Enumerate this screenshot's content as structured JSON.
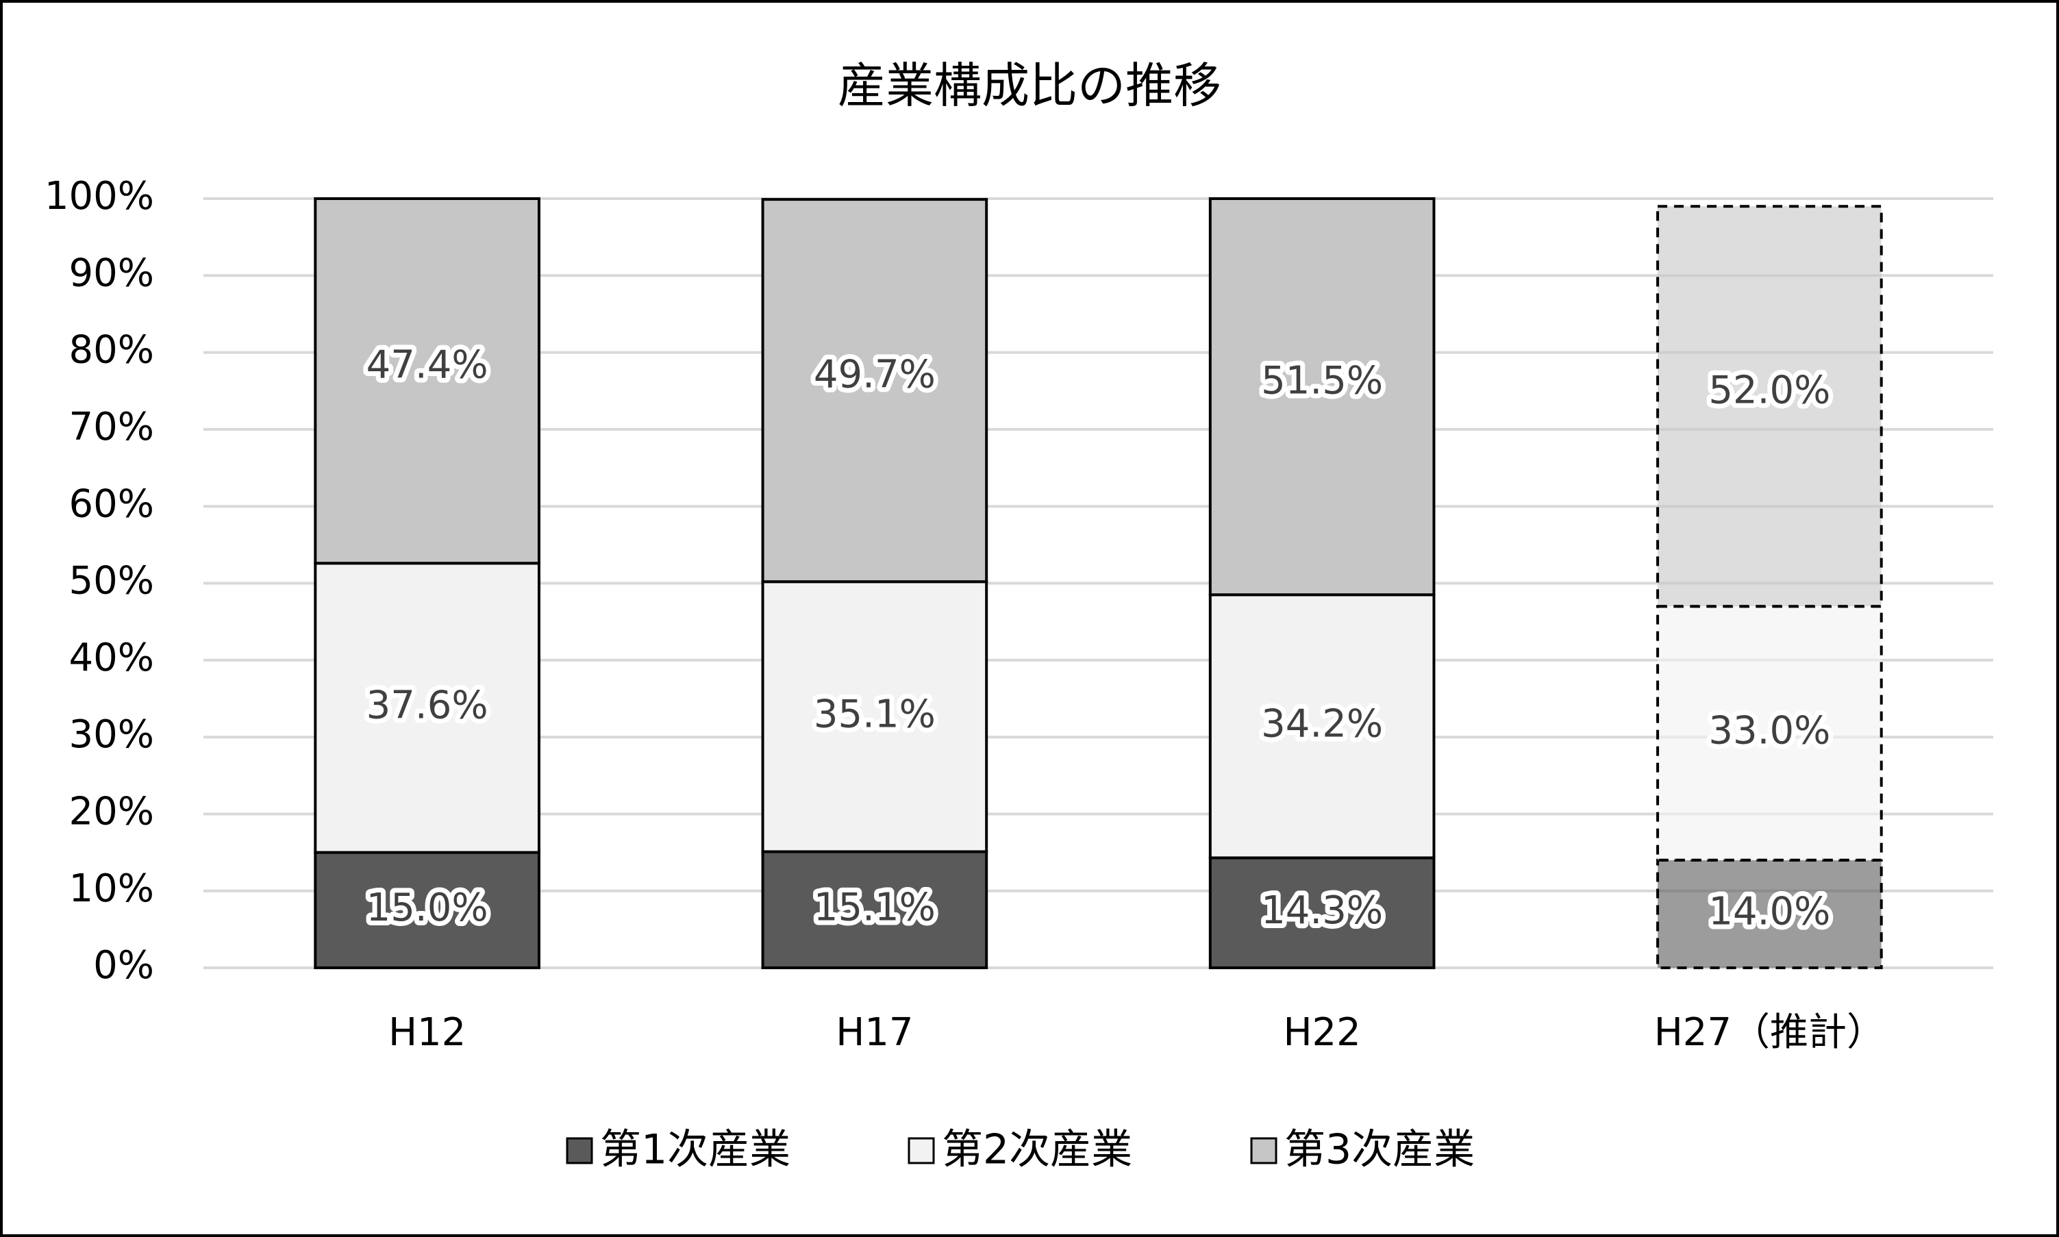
{
  "chart_data": {
    "type": "stacked_bar",
    "title": "産業構成比の推移",
    "categories": [
      "H12",
      "H17",
      "H22",
      "H27（推計）"
    ],
    "series": [
      {
        "name": "第1次産業",
        "color": "#5a5a5a",
        "values": [
          15.0,
          15.1,
          14.3,
          14.0
        ],
        "value_labels": [
          "15.0%",
          "15.1%",
          "14.3%",
          "14.0%"
        ]
      },
      {
        "name": "第2次産業",
        "color": "#f2f2f2",
        "values": [
          37.6,
          35.1,
          34.2,
          33.0
        ],
        "value_labels": [
          "37.6%",
          "35.1%",
          "34.2%",
          "33.0%"
        ]
      },
      {
        "name": "第3次産業",
        "color": "#c6c6c6",
        "values": [
          47.4,
          49.7,
          51.5,
          52.0
        ],
        "value_labels": [
          "47.4%",
          "49.7%",
          "51.5%",
          "52.0%"
        ]
      }
    ],
    "ylim": [
      0,
      100
    ],
    "yticks": [
      {
        "value": 0,
        "label": "0%"
      },
      {
        "value": 10,
        "label": "10%"
      },
      {
        "value": 20,
        "label": "20%"
      },
      {
        "value": 30,
        "label": "30%"
      },
      {
        "value": 40,
        "label": "40%"
      },
      {
        "value": 50,
        "label": "50%"
      },
      {
        "value": 60,
        "label": "60%"
      },
      {
        "value": 70,
        "label": "70%"
      },
      {
        "value": 80,
        "label": "80%"
      },
      {
        "value": 90,
        "label": "90%"
      },
      {
        "value": 100,
        "label": "100%"
      }
    ],
    "grid": true,
    "legend": "bottom"
  }
}
